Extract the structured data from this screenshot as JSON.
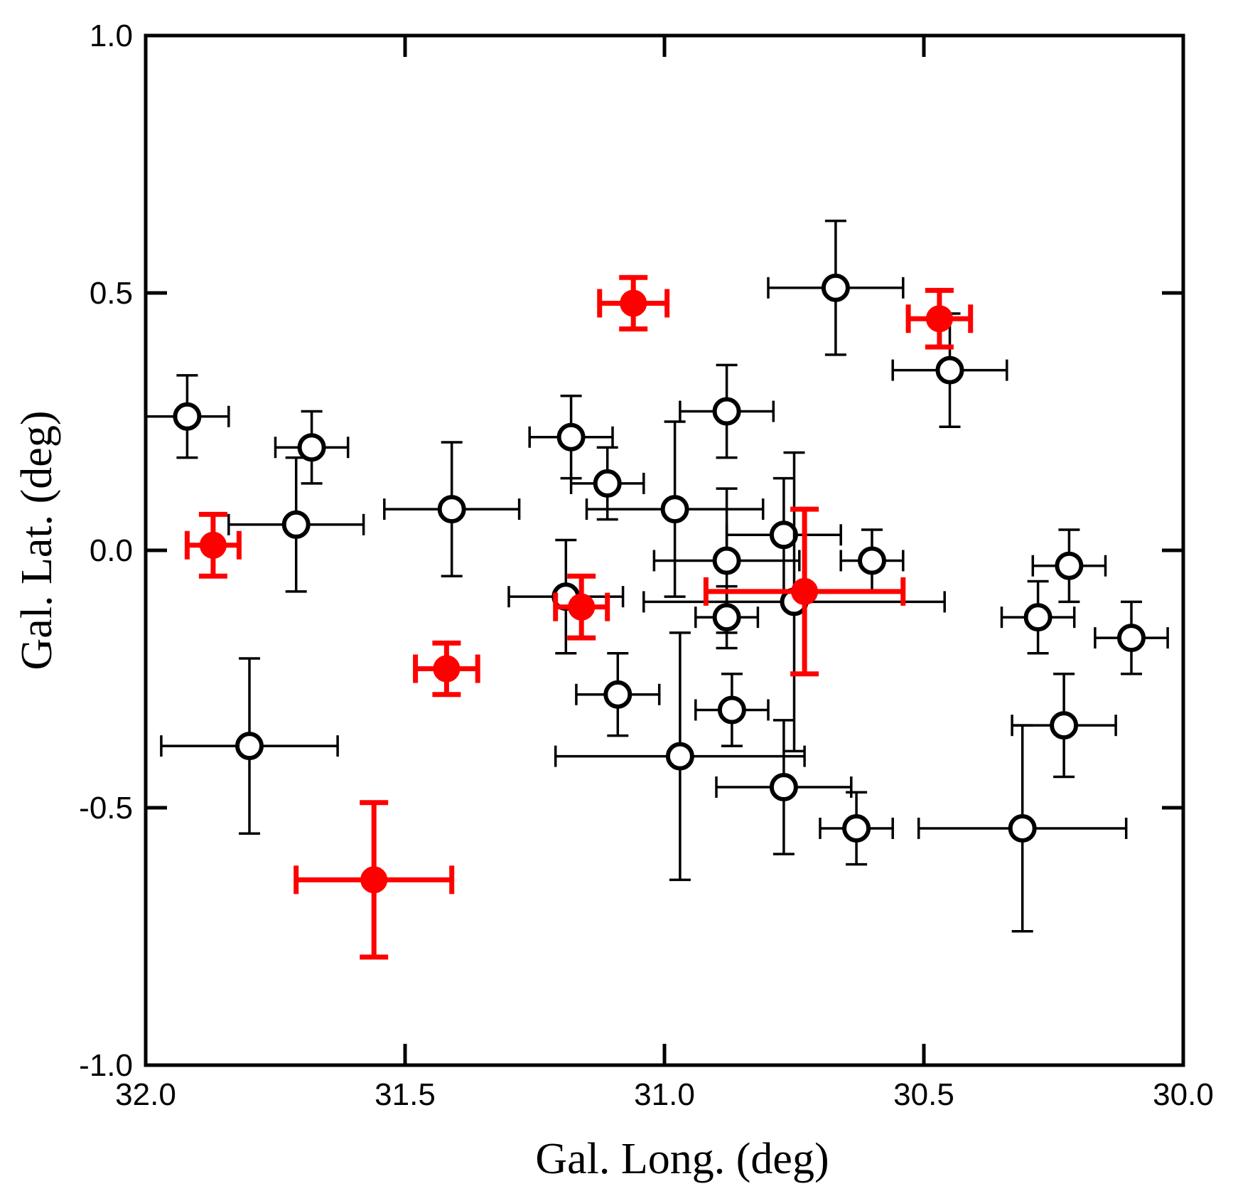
{
  "chart_data": {
    "type": "scatter",
    "title": "",
    "xlabel": "Gal. Long. (deg)",
    "ylabel": "Gal. Lat. (deg)",
    "xlim": [
      32.0,
      30.0
    ],
    "ylim": [
      -1.0,
      1.0
    ],
    "x_ticks": [
      32.0,
      31.5,
      31.0,
      30.5,
      30.0
    ],
    "x_tick_labels": [
      "32.0",
      "31.5",
      "31.0",
      "30.5",
      "30.0"
    ],
    "y_ticks": [
      1.0,
      0.5,
      0.0,
      -0.5,
      -1.0
    ],
    "y_tick_labels": [
      "1.0",
      "0.5",
      "0.0",
      "-0.5",
      "-1.0"
    ],
    "grid": false,
    "series": [
      {
        "name": "open",
        "color": "#000000",
        "marker": "open-circle",
        "points": [
          {
            "x": 31.92,
            "y": 0.26,
            "xerr": 0.08,
            "yerr": 0.08
          },
          {
            "x": 31.68,
            "y": 0.2,
            "xerr": 0.07,
            "yerr": 0.07
          },
          {
            "x": 31.71,
            "y": 0.05,
            "xerr": 0.13,
            "yerr": 0.13
          },
          {
            "x": 31.41,
            "y": 0.08,
            "xerr": 0.13,
            "yerr": 0.13
          },
          {
            "x": 31.18,
            "y": 0.22,
            "xerr": 0.08,
            "yerr": 0.08
          },
          {
            "x": 31.11,
            "y": 0.13,
            "xerr": 0.07,
            "yerr": 0.07
          },
          {
            "x": 30.98,
            "y": 0.08,
            "xerr": 0.17,
            "yerr": 0.17
          },
          {
            "x": 30.88,
            "y": 0.27,
            "xerr": 0.09,
            "yerr": 0.09
          },
          {
            "x": 30.67,
            "y": 0.51,
            "xerr": 0.13,
            "yerr": 0.13
          },
          {
            "x": 30.45,
            "y": 0.35,
            "xerr": 0.11,
            "yerr": 0.11
          },
          {
            "x": 31.8,
            "y": -0.38,
            "xerr": 0.17,
            "yerr": 0.17
          },
          {
            "x": 31.19,
            "y": -0.09,
            "xerr": 0.11,
            "yerr": 0.11
          },
          {
            "x": 31.09,
            "y": -0.28,
            "xerr": 0.08,
            "yerr": 0.08
          },
          {
            "x": 30.97,
            "y": -0.4,
            "xerr": 0.24,
            "yerr": 0.24
          },
          {
            "x": 30.88,
            "y": -0.02,
            "xerr": 0.14,
            "yerr": 0.14
          },
          {
            "x": 30.88,
            "y": -0.13,
            "xerr": 0.06,
            "yerr": 0.06
          },
          {
            "x": 30.87,
            "y": -0.31,
            "xerr": 0.07,
            "yerr": 0.07
          },
          {
            "x": 30.77,
            "y": 0.03,
            "xerr": 0.11,
            "yerr": 0.11
          },
          {
            "x": 30.75,
            "y": -0.1,
            "xerr": 0.29,
            "yerr": 0.29
          },
          {
            "x": 30.77,
            "y": -0.46,
            "xerr": 0.13,
            "yerr": 0.13
          },
          {
            "x": 30.6,
            "y": -0.02,
            "xerr": 0.06,
            "yerr": 0.06
          },
          {
            "x": 30.63,
            "y": -0.54,
            "xerr": 0.07,
            "yerr": 0.07
          },
          {
            "x": 30.31,
            "y": -0.54,
            "xerr": 0.2,
            "yerr": 0.2
          },
          {
            "x": 30.22,
            "y": -0.03,
            "xerr": 0.07,
            "yerr": 0.07
          },
          {
            "x": 30.28,
            "y": -0.13,
            "xerr": 0.07,
            "yerr": 0.07
          },
          {
            "x": 30.1,
            "y": -0.17,
            "xerr": 0.07,
            "yerr": 0.07
          },
          {
            "x": 30.23,
            "y": -0.34,
            "xerr": 0.1,
            "yerr": 0.1
          }
        ]
      },
      {
        "name": "filled",
        "color": "#ff0000",
        "marker": "filled-circle",
        "points": [
          {
            "x": 31.06,
            "y": 0.48,
            "xerr": 0.065,
            "yerr": 0.05
          },
          {
            "x": 30.47,
            "y": 0.45,
            "xerr": 0.06,
            "yerr": 0.055
          },
          {
            "x": 31.87,
            "y": 0.01,
            "xerr": 0.05,
            "yerr": 0.06
          },
          {
            "x": 31.16,
            "y": -0.11,
            "xerr": 0.05,
            "yerr": 0.06
          },
          {
            "x": 31.42,
            "y": -0.23,
            "xerr": 0.06,
            "yerr": 0.05
          },
          {
            "x": 30.73,
            "y": -0.08,
            "xerr": 0.19,
            "yerr": 0.16
          },
          {
            "x": 31.56,
            "y": -0.64,
            "xerr": 0.15,
            "yerr": 0.15
          }
        ]
      }
    ]
  }
}
